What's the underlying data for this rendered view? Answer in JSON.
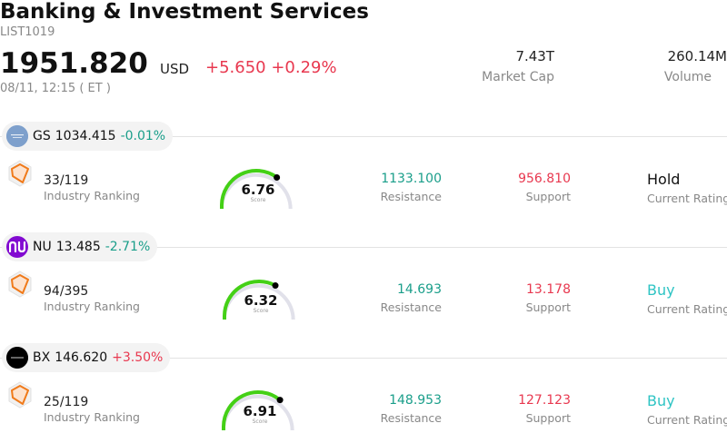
{
  "header": {
    "title": "Banking & Investment Services",
    "list_id": "LIST1019",
    "price": "1951.820",
    "currency": "USD",
    "change": "+5.650 +0.29%",
    "timestamp": "08/11, 12:15  ( ET )",
    "market_cap_value": "7.43T",
    "market_cap_label": "Market Cap",
    "volume_value": "260.14M",
    "volume_label": "Volume"
  },
  "stocks": [
    {
      "ticker": "GS",
      "price": "1034.415",
      "change": "-0.01%",
      "direction": "down",
      "logo": "goldman-sachs-logo",
      "logo_color": "#6e94c4",
      "rank": "33/119",
      "rank_label": "Industry Ranking",
      "score": "6.76",
      "score_fraction": 0.676,
      "score_label": "Score",
      "resistance": "1133.100",
      "resistance_label": "Resistance",
      "support": "956.810",
      "support_label": "Support",
      "rating": "Hold",
      "rating_label": "Current Rating"
    },
    {
      "ticker": "NU",
      "price": "13.485",
      "change": "-2.71%",
      "direction": "down",
      "logo": "nu-logo",
      "logo_color": "#820ad1",
      "rank": "94/395",
      "rank_label": "Industry Ranking",
      "score": "6.32",
      "score_fraction": 0.632,
      "score_label": "Score",
      "resistance": "14.693",
      "resistance_label": "Resistance",
      "support": "13.178",
      "support_label": "Support",
      "rating": "Buy",
      "rating_label": "Current Rating"
    },
    {
      "ticker": "BX",
      "price": "146.620",
      "change": "+3.50%",
      "direction": "up",
      "logo": "blackstone-logo",
      "logo_color": "#000000",
      "rank": "25/119",
      "rank_label": "Industry Ranking",
      "score": "6.91",
      "score_fraction": 0.691,
      "score_label": "Score",
      "resistance": "148.953",
      "resistance_label": "Resistance",
      "support": "127.123",
      "support_label": "Support",
      "rating": "Buy",
      "rating_label": "Current Rating"
    }
  ],
  "colors": {
    "up": "#e8384f",
    "down": "#1a9e8a",
    "gauge_fill": "#44d016",
    "gauge_track": "#e1e1ea",
    "buy": "#2ec4c4"
  }
}
